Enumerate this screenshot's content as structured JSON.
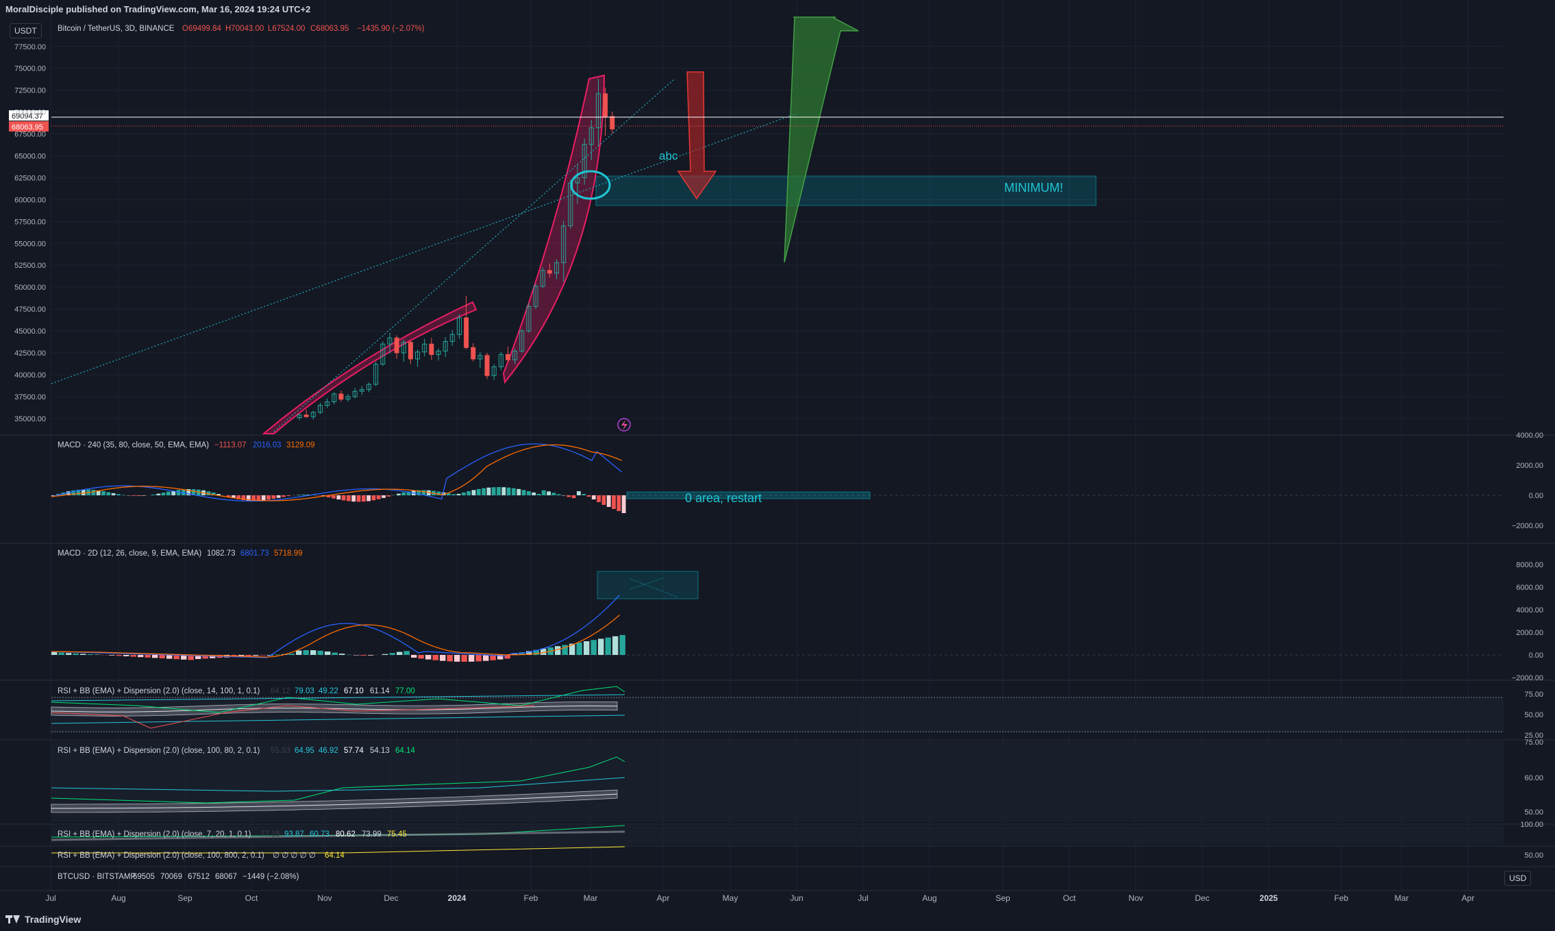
{
  "publisher": "MoralDisciple published on TradingView.com, Mar 16, 2024 19:24 UTC+2",
  "brand": "TradingView",
  "currency_btn": "USDT",
  "currency_btn_bottom": "USD",
  "symbol_line": {
    "name": "Bitcoin / TetherUS, 3D, BINANCE",
    "open": "O69499.84",
    "high": "H70043.00",
    "low": "L67524.00",
    "close": "C68063.95",
    "change": "−1435.90 (−2.07%)"
  },
  "price_labels": {
    "last": "68063.95",
    "crosshair": "69094.37"
  },
  "annotations": {
    "abc": "abc",
    "minimum": "MINIMUM!",
    "zero_area": "0 area, restart"
  },
  "panes": {
    "macd240": {
      "title": "MACD · 240 (35, 80, close, 50, EMA, EMA)",
      "v1": "−1113.07",
      "v2": "2016.03",
      "v3": "3129.09"
    },
    "macd2d": {
      "title": "MACD · 2D (12, 26, close, 9, EMA, EMA)",
      "v1": "1082.73",
      "v2": "6801.73",
      "v3": "5718.99"
    },
    "rsi1": {
      "title": "RSI + BB (EMA) + Dispersion (2.0) (close, 14, 100, 1, 0.1)",
      "v0": "64.12",
      "v1": "79.03",
      "v2": "49.22",
      "v3": "67.10",
      "v4": "61.14",
      "v5": "77.00"
    },
    "rsi2": {
      "title": "RSI + BB (EMA) + Dispersion (2.0) (close, 100, 80, 2, 0.1)",
      "v0": "55.93",
      "v1": "64.95",
      "v2": "46.92",
      "v3": "57.74",
      "v4": "54.13",
      "v5": "64.14"
    },
    "rsi3": {
      "title": "RSI + BB (EMA) + Dispersion (2.0) (close, 7, 20, 1, 0.1)",
      "v0": "77.15",
      "v1": "93.87",
      "v2": "60.73",
      "v3": "80.62",
      "v4": "73.99",
      "v5": "75.45"
    },
    "rsi4": {
      "title": "RSI + BB (EMA) + Dispersion (2.0) (close, 100, 800, 2, 0.1)",
      "v0": "∅ ∅ ∅ ∅ ∅",
      "v5": "64.14"
    },
    "btcusd": {
      "title": "BTCUSD · BITSTAMP",
      "o": "69505",
      "h": "70069",
      "l": "67512",
      "c": "68067",
      "chg": "−1449 (−2.08%)"
    }
  },
  "axes": {
    "price_ticks": [
      "77500.00",
      "75000.00",
      "72500.00",
      "70000.00",
      "67500.00",
      "65000.00",
      "62500.00",
      "60000.00",
      "57500.00",
      "55000.00",
      "52500.00",
      "50000.00",
      "47500.00",
      "45000.00",
      "42500.00",
      "40000.00",
      "37500.00",
      "35000.00"
    ],
    "macd240_ticks": [
      "4000.00",
      "2000.00",
      "0.00",
      "−2000.00"
    ],
    "macd2d_ticks": [
      "8000.00",
      "6000.00",
      "4000.00",
      "2000.00",
      "0.00",
      "−2000.00"
    ],
    "rsi1_ticks": [
      "75.00",
      "50.00",
      "25.00"
    ],
    "rsi2_ticks": [
      "75.00",
      "60.00",
      "50.00"
    ],
    "rsi3_ticks": [
      "100.00"
    ],
    "rsi4_ticks": [
      "50.00"
    ],
    "time_labels": [
      "Jul",
      "Aug",
      "Sep",
      "Oct",
      "Nov",
      "Dec",
      "2024",
      "Feb",
      "Mar",
      "Apr",
      "May",
      "Jun",
      "Jul",
      "Aug",
      "Sep",
      "Oct",
      "Nov",
      "Dec",
      "2025",
      "Feb",
      "Mar",
      "Apr"
    ]
  },
  "colors": {
    "bg": "#141823",
    "up": "#26a69a",
    "down": "#ef5350",
    "macd": "#2962ff",
    "signal": "#ff6d00",
    "accent": "#00bcd4",
    "arc": "#e91e63",
    "green_arrow": "#2e7d32",
    "red_arrow": "#b71c1c"
  },
  "chart_data": {
    "type": "candlestick",
    "timeframe": "3D",
    "title": "Bitcoin / TetherUS, 3D, BINANCE",
    "ylim": [
      33500,
      78500
    ],
    "candles": [
      [
        35100,
        35600,
        34800,
        35400
      ],
      [
        35400,
        36000,
        35100,
        35200
      ],
      [
        35200,
        35900,
        34900,
        35700
      ],
      [
        35700,
        36800,
        35500,
        36500
      ],
      [
        36500,
        37300,
        36200,
        36900
      ],
      [
        36900,
        38000,
        36600,
        37800
      ],
      [
        37800,
        38200,
        36900,
        37200
      ],
      [
        37200,
        37800,
        36900,
        37500
      ],
      [
        37500,
        38500,
        37300,
        38100
      ],
      [
        38100,
        38700,
        37700,
        38300
      ],
      [
        38300,
        39100,
        38000,
        38900
      ],
      [
        38900,
        41500,
        38700,
        41200
      ],
      [
        41200,
        43800,
        41000,
        43500
      ],
      [
        43500,
        44800,
        42400,
        44200
      ],
      [
        44200,
        44500,
        41800,
        42500
      ],
      [
        42500,
        44000,
        41500,
        43700
      ],
      [
        43700,
        43900,
        41200,
        41800
      ],
      [
        41800,
        42900,
        40900,
        42600
      ],
      [
        42600,
        44100,
        42100,
        43500
      ],
      [
        43500,
        44200,
        41700,
        42300
      ],
      [
        42300,
        43000,
        41600,
        42700
      ],
      [
        42700,
        44300,
        42000,
        43800
      ],
      [
        43800,
        45100,
        43300,
        44600
      ],
      [
        44600,
        46900,
        44100,
        46500
      ],
      [
        46500,
        49000,
        42900,
        43100
      ],
      [
        43100,
        43600,
        41500,
        41800
      ],
      [
        41800,
        42600,
        40800,
        42200
      ],
      [
        42200,
        42500,
        39500,
        39900
      ],
      [
        39900,
        41200,
        39400,
        40900
      ],
      [
        40900,
        42600,
        40500,
        42300
      ],
      [
        42300,
        43200,
        41400,
        41700
      ],
      [
        41700,
        43000,
        41200,
        42700
      ],
      [
        42700,
        45200,
        42500,
        45000
      ],
      [
        45000,
        48200,
        44800,
        47800
      ],
      [
        47800,
        50400,
        47500,
        50100
      ],
      [
        50100,
        52300,
        49900,
        51900
      ],
      [
        51900,
        52700,
        51100,
        51600
      ],
      [
        51600,
        53200,
        50900,
        52800
      ],
      [
        52800,
        57600,
        50600,
        57000
      ],
      [
        57000,
        62300,
        56700,
        61900
      ],
      [
        61900,
        64000,
        59500,
        62500
      ],
      [
        62500,
        67000,
        61700,
        66300
      ],
      [
        66300,
        69100,
        64500,
        68200
      ],
      [
        68200,
        73800,
        66100,
        72100
      ],
      [
        72100,
        72800,
        67300,
        69499
      ],
      [
        69499,
        70043,
        67524,
        68063.95
      ]
    ],
    "price_lines": {
      "last": 68063.95,
      "crosshair": 69094.37
    },
    "zones": [
      {
        "label": "MINIMUM!",
        "from": 59000,
        "to": 62500
      }
    ],
    "macd240": {
      "macd": -1113.07,
      "signal": 2016.03,
      "hist": 3129.09
    },
    "macd2d": {
      "macd": 1082.73,
      "signal": 6801.73,
      "hist": 5718.99
    }
  }
}
